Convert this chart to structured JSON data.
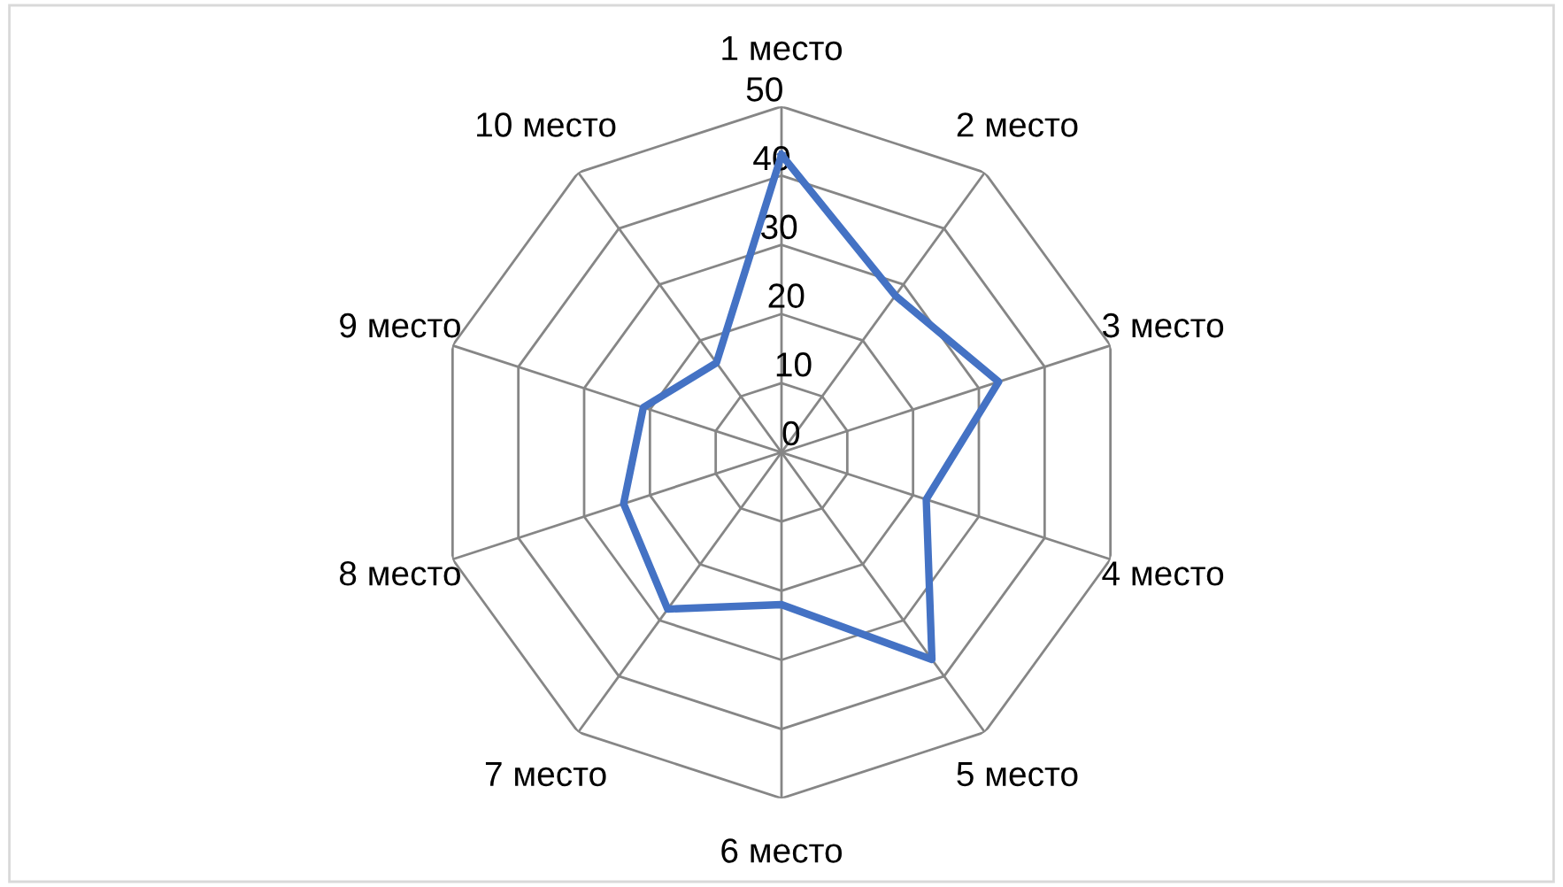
{
  "chart_data": {
    "type": "radar",
    "categories": [
      "1 место",
      "2 место",
      "3 место",
      "4 место",
      "5 место",
      "6 место",
      "7 место",
      "8 место",
      "9 место",
      "10 место"
    ],
    "series": [
      {
        "color": "#4472c4",
        "values": [
          43,
          28,
          33,
          22,
          37,
          22,
          28,
          24,
          21,
          16
        ]
      }
    ],
    "ylim": [
      0,
      50
    ],
    "yticks": [
      0,
      10,
      20,
      30,
      40,
      50
    ],
    "grid": true,
    "marker": "none"
  }
}
